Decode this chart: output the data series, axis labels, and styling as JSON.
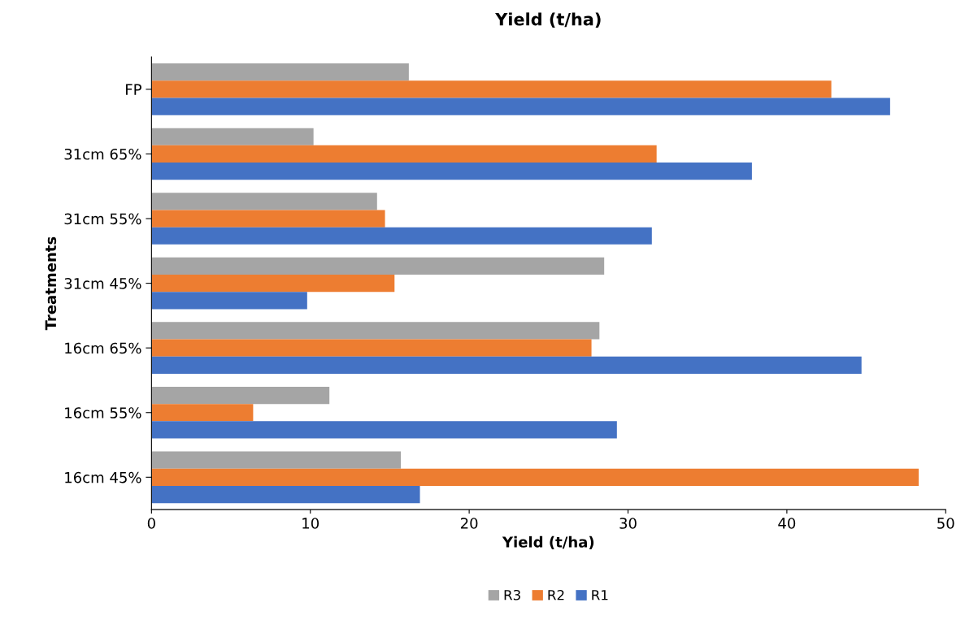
{
  "chart_data": {
    "type": "bar",
    "orientation": "horizontal",
    "title": "Yield (t/ha)",
    "xlabel": "Yield (t/ha)",
    "ylabel": "Treatments",
    "categories": [
      "FP",
      "31cm 65%",
      "31cm 55%",
      "31cm 45%",
      "16cm 65%",
      "16cm 55%",
      "16cm 45%"
    ],
    "series": [
      {
        "name": "R3",
        "color": "#a5a5a5",
        "values": [
          16.2,
          10.2,
          14.2,
          28.5,
          28.2,
          11.2,
          15.7
        ]
      },
      {
        "name": "R2",
        "color": "#ed7d31",
        "values": [
          42.8,
          31.8,
          14.7,
          15.3,
          27.7,
          6.4,
          48.3
        ]
      },
      {
        "name": "R1",
        "color": "#4472c4",
        "values": [
          46.5,
          37.8,
          31.5,
          9.8,
          44.7,
          29.3,
          16.9
        ]
      }
    ],
    "xlim": [
      0,
      50
    ],
    "xticks": [
      0,
      10,
      20,
      30,
      40,
      50
    ],
    "grid": false,
    "legend": "bottom"
  }
}
